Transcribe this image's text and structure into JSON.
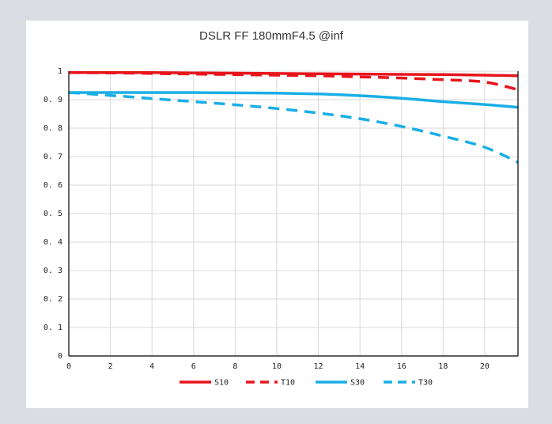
{
  "chart_data": {
    "type": "line",
    "title": "DSLR FF 180mmF4.5 @inf",
    "xlim": [
      0,
      21.6
    ],
    "ylim": [
      0,
      1
    ],
    "x_ticks": [
      0,
      2,
      4,
      6,
      8,
      10,
      12,
      14,
      16,
      18,
      20
    ],
    "y_ticks": [
      0,
      0.1,
      0.2,
      0.3,
      0.4,
      0.5,
      0.6,
      0.7,
      0.8,
      0.9,
      1
    ],
    "y_tick_labels": [
      "0",
      "0. 1",
      "0. 2",
      "0. 3",
      "0. 4",
      "0. 5",
      "0. 6",
      "0. 7",
      "0. 8",
      "0. 9",
      "1"
    ],
    "grid": true,
    "legend_position": "bottom",
    "x": [
      0,
      2,
      4,
      6,
      8,
      10,
      12,
      14,
      16,
      18,
      20,
      21.6
    ],
    "series": [
      {
        "name": "S10",
        "color": "#e8141b",
        "dash": false,
        "values": [
          0.995,
          0.995,
          0.995,
          0.994,
          0.993,
          0.992,
          0.991,
          0.99,
          0.989,
          0.988,
          0.986,
          0.984
        ]
      },
      {
        "name": "T10",
        "color": "#e8141b",
        "dash": true,
        "values": [
          0.995,
          0.994,
          0.992,
          0.99,
          0.988,
          0.986,
          0.984,
          0.98,
          0.976,
          0.97,
          0.962,
          0.935
        ]
      },
      {
        "name": "S30",
        "color": "#1aaee6",
        "dash": false,
        "values": [
          0.925,
          0.925,
          0.925,
          0.925,
          0.924,
          0.923,
          0.92,
          0.914,
          0.905,
          0.893,
          0.883,
          0.873
        ]
      },
      {
        "name": "T30",
        "color": "#1aaee6",
        "dash": true,
        "values": [
          0.925,
          0.915,
          0.904,
          0.893,
          0.882,
          0.869,
          0.853,
          0.833,
          0.806,
          0.772,
          0.733,
          0.68
        ]
      }
    ]
  }
}
